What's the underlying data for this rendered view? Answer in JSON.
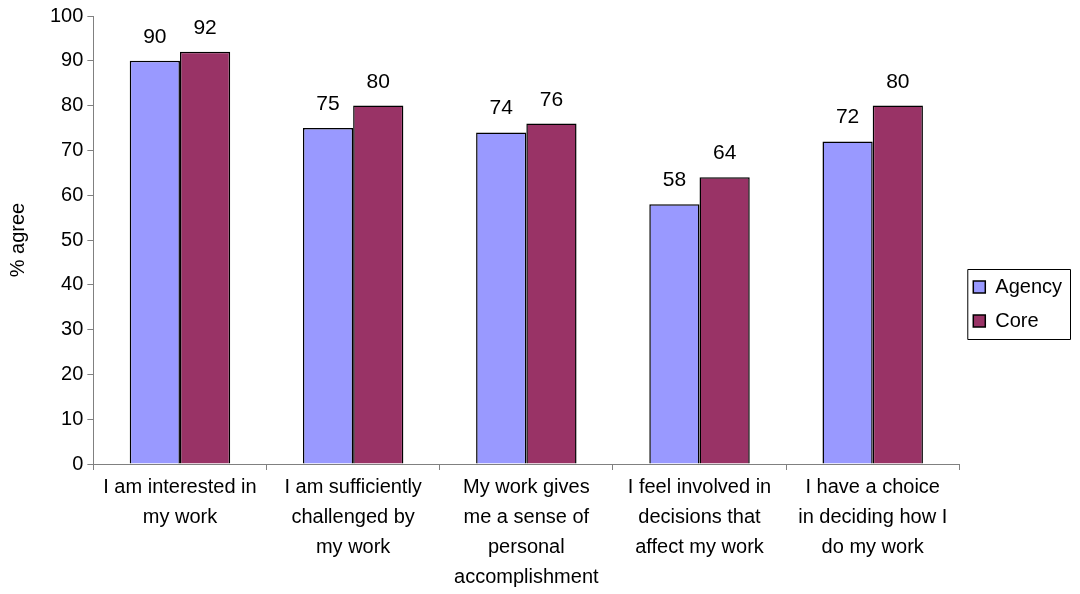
{
  "chart_data": {
    "type": "bar",
    "ylabel": "% agree",
    "categories": [
      "I am interested in my work",
      "I am sufficiently challenged by my work",
      "My work gives me a sense of personal accomplishment",
      "I feel involved in decisions that affect my work",
      "I have a choice in deciding how I do my work"
    ],
    "series": [
      {
        "name": "Agency",
        "color": "#9999ff",
        "values": [
          90,
          75,
          74,
          58,
          72
        ]
      },
      {
        "name": "Core",
        "color": "#993366",
        "values": [
          92,
          80,
          76,
          64,
          80
        ]
      }
    ],
    "ylim": [
      0,
      100
    ],
    "yticks": [
      0,
      10,
      20,
      30,
      40,
      50,
      60,
      70,
      80,
      90,
      100
    ],
    "grid": false,
    "legend": "right",
    "data_labels": true
  }
}
